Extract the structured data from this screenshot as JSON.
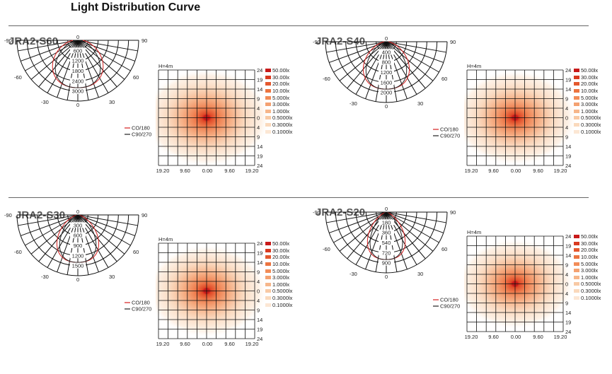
{
  "page": {
    "title": "Light Distribution Curve"
  },
  "legend": {
    "levels": [
      "50.00lx",
      "30.00lx",
      "20.00lx",
      "10.00lx",
      "5.000lx",
      "3.000lx",
      "1.000lx",
      "0.5000lx",
      "0.3000lx",
      "0.1000lx"
    ],
    "colors": [
      "#c81a1a",
      "#d93a20",
      "#e4582e",
      "#ec7440",
      "#f28c58",
      "#f4a170",
      "#f6b68a",
      "#f8c9a4",
      "#fad9bc",
      "#fce7d4"
    ]
  },
  "polar_angles": {
    "left90": "-90",
    "right90": "90",
    "left60": "-60",
    "right60": "60",
    "left30": "-30",
    "right30": "30",
    "zero_top": "0",
    "zero_bottom": "0"
  },
  "curve_legend": {
    "c0": "CO/180",
    "c90": "C90/270"
  },
  "grid_labels": {
    "height": "H=4m",
    "y_ticks": [
      "24",
      "19",
      "14",
      "9",
      "4",
      "0",
      "4",
      "9",
      "14",
      "19",
      "24"
    ],
    "x_ticks": [
      "19.20",
      "9.60",
      "0.00",
      "9.60",
      "19.20"
    ]
  },
  "panels": [
    {
      "model": "JRA2-S60",
      "polar_ticks": [
        "600",
        "1200",
        "1800",
        "2400",
        "3000"
      ]
    },
    {
      "model": "JRA2-S40",
      "polar_ticks": [
        "400",
        "800",
        "1200",
        "1600",
        "2000"
      ]
    },
    {
      "model": "JRA2-S30",
      "polar_ticks": [
        "300",
        "600",
        "900",
        "1200",
        "1500"
      ]
    },
    {
      "model": "JRA2-S20",
      "polar_ticks": [
        "180",
        "360",
        "540",
        "720",
        "900"
      ]
    }
  ]
}
